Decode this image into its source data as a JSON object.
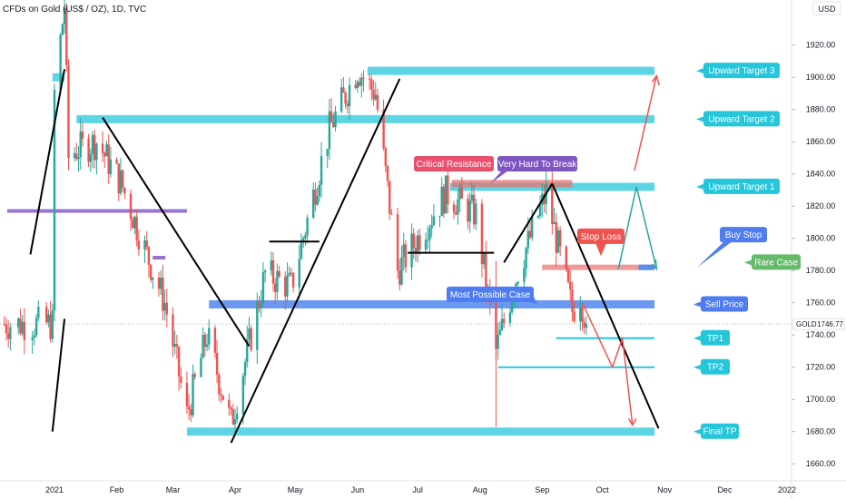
{
  "header": {
    "symbol_title": "CFDs on Gold (US$ / OZ), 1D, TVC",
    "currency": "USD"
  },
  "price_scale": {
    "ticks": [
      1660,
      1680,
      1700,
      1720,
      1740,
      1760,
      1780,
      1800,
      1820,
      1840,
      1860,
      1880,
      1900,
      1920
    ],
    "min": 1648,
    "max": 1948
  },
  "time_scale": {
    "labels": [
      "2021",
      "Feb",
      "Mar",
      "Apr",
      "May",
      "Jun",
      "Jul",
      "Aug",
      "Sep",
      "Oct",
      "Nov",
      "Dec",
      "2022"
    ]
  },
  "last_price": {
    "symbol": "GOLD",
    "value": "1746.77",
    "price": 1746.77,
    "color": "#ef5350"
  },
  "colors": {
    "up_candle": "#26a69a",
    "down_candle": "#ef5350",
    "target_zone": "#4dd0e1",
    "sell_zone": "#5b8def",
    "resistance_zone": "#e57373",
    "callout_teal": "#26c6da",
    "callout_pink": "#e8506e",
    "callout_purple": "#7e57c2",
    "callout_green": "#66bb6a",
    "callout_blue": "#4f7df0",
    "callout_red": "#ef5350"
  },
  "annotations": {
    "upward_target_3": "Upward Target 3",
    "upward_target_2": "Upward Target 2",
    "upward_target_1": "Upward Target 1",
    "critical_resistance": "Critical Resistance",
    "very_hard_to_break": "Very Hard To Break",
    "stop_loss": "Stop Loss",
    "buy_stop": "Buy Stop",
    "rare_case": "Rare Case",
    "most_possible_case": "Most Possible Case",
    "sell_price": "Sell Price",
    "tp1": "TP1",
    "tp2": "TP2",
    "final_tp": "Final TP"
  },
  "chart_data": {
    "type": "candlestick",
    "title": "CFDs on Gold (US$ / OZ), 1D, TVC",
    "ylim": [
      1648,
      1948
    ],
    "x_labels": [
      "2021",
      "Feb",
      "Mar",
      "Apr",
      "May",
      "Jun",
      "Jul",
      "Aug",
      "Sep",
      "Oct",
      "Nov",
      "Dec",
      "2022"
    ],
    "price_path": [
      [
        "2021-01-01",
        1890
      ],
      [
        "2021-01-06",
        1945
      ],
      [
        "2021-01-08",
        1850
      ],
      [
        "2021-01-12",
        1855
      ],
      [
        "2021-01-22",
        1860
      ],
      [
        "2021-02-03",
        1835
      ],
      [
        "2021-02-16",
        1790
      ],
      [
        "2021-02-25",
        1760
      ],
      [
        "2021-03-08",
        1690
      ],
      [
        "2021-03-18",
        1740
      ],
      [
        "2021-03-30",
        1685
      ],
      [
        "2021-04-16",
        1778
      ],
      [
        "2021-04-29",
        1770
      ],
      [
        "2021-05-18",
        1868
      ],
      [
        "2021-06-01",
        1905
      ],
      [
        "2021-06-10",
        1890
      ],
      [
        "2021-06-21",
        1780
      ],
      [
        "2021-07-15",
        1828
      ],
      [
        "2021-07-30",
        1815
      ],
      [
        "2021-08-09",
        1730
      ],
      [
        "2021-08-20",
        1780
      ],
      [
        "2021-09-03",
        1828
      ],
      [
        "2021-09-16",
        1755
      ],
      [
        "2021-09-20",
        1765
      ],
      [
        "2021-09-23",
        1746.77
      ]
    ],
    "horizontal_levels": [
      {
        "label": "Upward Target 3",
        "price": 1904
      },
      {
        "label": "Upward Target 2",
        "price": 1874
      },
      {
        "label": "Upward Target 1",
        "price": 1832
      },
      {
        "label": "Sell Price",
        "price": 1759
      },
      {
        "label": "TP1",
        "price": 1738
      },
      {
        "label": "TP2",
        "price": 1720
      },
      {
        "label": "Final TP",
        "price": 1680
      }
    ],
    "last_price": 1746.77
  }
}
